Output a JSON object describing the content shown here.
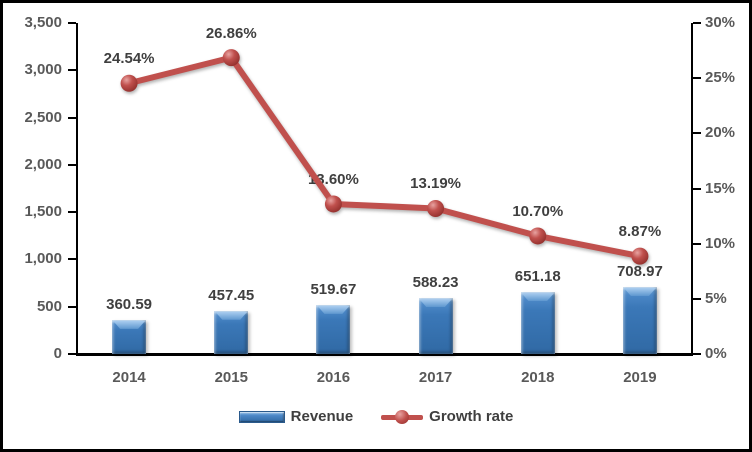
{
  "chart_data": {
    "type": "combo-bar-line",
    "title": "",
    "categories": [
      "2014",
      "2015",
      "2016",
      "2017",
      "2018",
      "2019"
    ],
    "series": [
      {
        "name": "Revenue",
        "type": "bar",
        "axis": "left",
        "values": [
          360.59,
          457.45,
          519.67,
          588.23,
          651.18,
          708.97
        ],
        "labels": [
          "360.59",
          "457.45",
          "519.67",
          "588.23",
          "651.18",
          "708.97"
        ],
        "color": "#3B78B8"
      },
      {
        "name": "Growth rate",
        "type": "line",
        "axis": "right",
        "values": [
          24.54,
          26.86,
          13.6,
          13.19,
          10.7,
          8.87
        ],
        "labels": [
          "24.54%",
          "26.86%",
          "13.60%",
          "13.19%",
          "10.70%",
          "8.87%"
        ],
        "color": "#C0504D"
      }
    ],
    "left_axis": {
      "min": 0,
      "max": 3500,
      "step": 500,
      "tick_labels": [
        "0",
        "500",
        "1,000",
        "1,500",
        "2,000",
        "2,500",
        "3,000",
        "3,500"
      ]
    },
    "right_axis": {
      "min": 0,
      "max": 30,
      "step": 5,
      "tick_labels": [
        "0%",
        "5%",
        "10%",
        "15%",
        "20%",
        "25%",
        "30%"
      ]
    },
    "grid": false,
    "legend_position": "bottom"
  },
  "colors": {
    "bar_fill": "#3B78B8",
    "bar_highlight": "#A9CCEF",
    "line": "#C0504D",
    "marker_highlight": "#E8A3A1",
    "marker_dark": "#93302D",
    "axis_text": "#595959",
    "data_label_text": "#3F3F3F",
    "axis_line": "#000000",
    "background": "#FFFFFF",
    "border": "#000000"
  }
}
